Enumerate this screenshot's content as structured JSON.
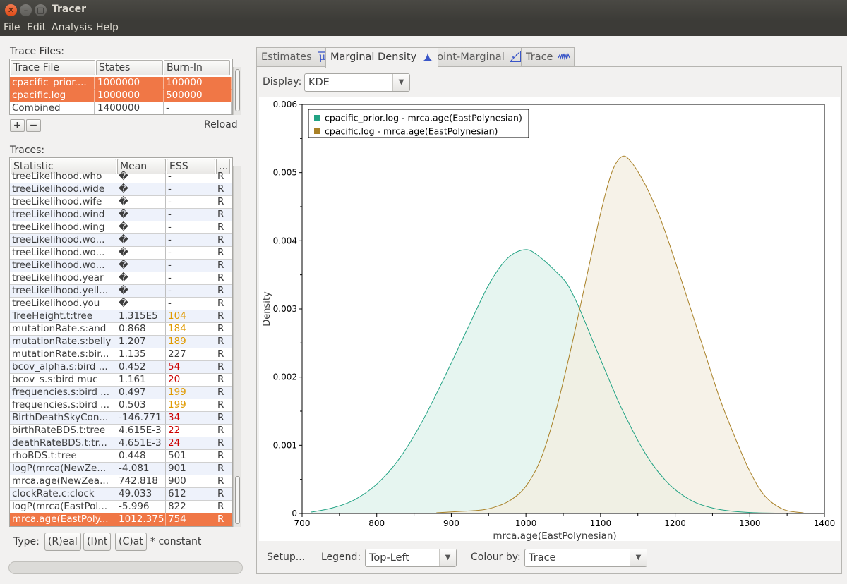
{
  "window": {
    "title": "Tracer"
  },
  "menu": [
    "File",
    "Edit",
    "Analysis",
    "Help"
  ],
  "trace_files": {
    "label": "Trace Files:",
    "columns": [
      "Trace File",
      "States",
      "Burn-In"
    ],
    "rows": [
      {
        "file": "cpacific_prior....",
        "states": "1000000",
        "burnin": "100000",
        "selected": true
      },
      {
        "file": "cpacific.log",
        "states": "1000000",
        "burnin": "500000",
        "selected": true
      },
      {
        "file": "Combined",
        "states": "1400000",
        "burnin": "-",
        "selected": false
      }
    ],
    "add_label": "+",
    "remove_label": "−",
    "reload_label": "Reload"
  },
  "traces": {
    "label": "Traces:",
    "columns": [
      "Statistic",
      "Mean",
      "ESS",
      "..."
    ],
    "rows": [
      {
        "stat": "treeLikelihood.who",
        "mean": "�",
        "ess": "-",
        "type": "R",
        "ess_flag": ""
      },
      {
        "stat": "treeLikelihood.wide",
        "mean": "�",
        "ess": "-",
        "type": "R",
        "ess_flag": ""
      },
      {
        "stat": "treeLikelihood.wife",
        "mean": "�",
        "ess": "-",
        "type": "R",
        "ess_flag": ""
      },
      {
        "stat": "treeLikelihood.wind",
        "mean": "�",
        "ess": "-",
        "type": "R",
        "ess_flag": ""
      },
      {
        "stat": "treeLikelihood.wing",
        "mean": "�",
        "ess": "-",
        "type": "R",
        "ess_flag": ""
      },
      {
        "stat": "treeLikelihood.wo...",
        "mean": "�",
        "ess": "-",
        "type": "R",
        "ess_flag": ""
      },
      {
        "stat": "treeLikelihood.wo...",
        "mean": "�",
        "ess": "-",
        "type": "R",
        "ess_flag": ""
      },
      {
        "stat": "treeLikelihood.wo...",
        "mean": "�",
        "ess": "-",
        "type": "R",
        "ess_flag": ""
      },
      {
        "stat": "treeLikelihood.year",
        "mean": "�",
        "ess": "-",
        "type": "R",
        "ess_flag": ""
      },
      {
        "stat": "treeLikelihood.yell...",
        "mean": "�",
        "ess": "-",
        "type": "R",
        "ess_flag": ""
      },
      {
        "stat": "treeLikelihood.you",
        "mean": "�",
        "ess": "-",
        "type": "R",
        "ess_flag": ""
      },
      {
        "stat": "TreeHeight.t:tree",
        "mean": "1.315E5",
        "ess": "104",
        "type": "R",
        "ess_flag": "warn"
      },
      {
        "stat": "mutationRate.s:and",
        "mean": "0.868",
        "ess": "184",
        "type": "R",
        "ess_flag": "warn"
      },
      {
        "stat": "mutationRate.s:belly",
        "mean": "1.207",
        "ess": "189",
        "type": "R",
        "ess_flag": "warn"
      },
      {
        "stat": "mutationRate.s:bir...",
        "mean": "1.135",
        "ess": "227",
        "type": "R",
        "ess_flag": ""
      },
      {
        "stat": "bcov_alpha.s:bird ...",
        "mean": "0.452",
        "ess": "54",
        "type": "R",
        "ess_flag": "bad"
      },
      {
        "stat": "bcov_s.s:bird muc",
        "mean": "1.161",
        "ess": "20",
        "type": "R",
        "ess_flag": "bad"
      },
      {
        "stat": "frequencies.s:bird ...",
        "mean": "0.497",
        "ess": "199",
        "type": "R",
        "ess_flag": "warn"
      },
      {
        "stat": "frequencies.s:bird ...",
        "mean": "0.503",
        "ess": "199",
        "type": "R",
        "ess_flag": "warn"
      },
      {
        "stat": "BirthDeathSkyCon...",
        "mean": "-146.771",
        "ess": "34",
        "type": "R",
        "ess_flag": "bad"
      },
      {
        "stat": "birthRateBDS.t:tree",
        "mean": "4.615E-3",
        "ess": "22",
        "type": "R",
        "ess_flag": "bad"
      },
      {
        "stat": "deathRateBDS.t:tr...",
        "mean": "4.651E-3",
        "ess": "24",
        "type": "R",
        "ess_flag": "bad"
      },
      {
        "stat": "rhoBDS.t:tree",
        "mean": "0.448",
        "ess": "501",
        "type": "R",
        "ess_flag": ""
      },
      {
        "stat": "logP(mrca(NewZe...",
        "mean": "-4.081",
        "ess": "901",
        "type": "R",
        "ess_flag": ""
      },
      {
        "stat": "mrca.age(NewZea...",
        "mean": "742.818",
        "ess": "900",
        "type": "R",
        "ess_flag": ""
      },
      {
        "stat": "clockRate.c:clock",
        "mean": "49.033",
        "ess": "612",
        "type": "R",
        "ess_flag": ""
      },
      {
        "stat": "logP(mrca(EastPol...",
        "mean": "-5.996",
        "ess": "822",
        "type": "R",
        "ess_flag": ""
      },
      {
        "stat": "mrca.age(EastPoly...",
        "mean": "1012.375",
        "ess": "754",
        "type": "R",
        "ess_flag": "",
        "selected": true
      }
    ],
    "colors": {
      "warn": "#e09a00",
      "bad": "#cc0000",
      "selection": "#f07746"
    }
  },
  "type_bar": {
    "label": "Type:",
    "real": "(R)eal",
    "int": "(I)nt",
    "cat": "(C)at",
    "note": "* constant"
  },
  "tabs": [
    {
      "label": "Estimates",
      "icon": "mu-icon"
    },
    {
      "label": "Marginal Density",
      "icon": "density-icon",
      "active": true
    },
    {
      "label": "Joint-Marginal",
      "icon": "scatter-icon"
    },
    {
      "label": "Trace",
      "icon": "trace-icon"
    }
  ],
  "display": {
    "label": "Display:",
    "value": "KDE"
  },
  "bottom_bar": {
    "setup_label": "Setup...",
    "legend_label": "Legend:",
    "legend_value": "Top-Left",
    "colour_label": "Colour by:",
    "colour_value": "Trace"
  },
  "chart_data": {
    "type": "area",
    "xlabel": "mrca.age(EastPolynesian)",
    "ylabel": "Density",
    "xlim": [
      700,
      1400
    ],
    "ylim": [
      0,
      0.006
    ],
    "x_ticks": [
      "700",
      "800",
      "900",
      "1000",
      "1100",
      "1200",
      "1300",
      "1400"
    ],
    "y_ticks": [
      "0",
      "0.001",
      "0.002",
      "0.003",
      "0.004",
      "0.005",
      "0.006"
    ],
    "legend_position": "top-left",
    "series": [
      {
        "name": "cpacific_prior.log - mrca.age(EastPolynesian)",
        "color": "#22a384",
        "fill": "#e6f5f0",
        "x": [
          712,
          740,
          770,
          800,
          830,
          860,
          890,
          920,
          950,
          975,
          1000,
          1020,
          1040,
          1055,
          1070,
          1090,
          1110,
          1130,
          1160,
          1190,
          1220,
          1250,
          1280,
          1310,
          1340
        ],
        "y": [
          2e-05,
          8e-05,
          0.0002,
          0.00043,
          0.0008,
          0.00133,
          0.00198,
          0.00267,
          0.00335,
          0.00374,
          0.00387,
          0.00375,
          0.00355,
          0.00337,
          0.00305,
          0.00252,
          0.002,
          0.0015,
          0.00088,
          0.00045,
          0.0002,
          8e-05,
          3e-05,
          1e-05,
          5e-06
        ]
      },
      {
        "name": "cpacific.log - mrca.age(EastPolynesian)",
        "color": "#a98127",
        "fill": "#f3ede0",
        "x": [
          880,
          910,
          940,
          960,
          980,
          1000,
          1020,
          1040,
          1060,
          1080,
          1100,
          1115,
          1128,
          1140,
          1160,
          1180,
          1200,
          1220,
          1240,
          1260,
          1280,
          1300,
          1320,
          1345,
          1372
        ],
        "y": [
          1e-05,
          3e-05,
          5e-05,
          0.0001,
          0.0002,
          0.0004,
          0.0008,
          0.0015,
          0.0024,
          0.0034,
          0.0044,
          0.005,
          0.00523,
          0.00517,
          0.00482,
          0.00433,
          0.0037,
          0.00303,
          0.00235,
          0.00168,
          0.00112,
          0.00062,
          0.00026,
          6e-05,
          1e-05
        ]
      }
    ]
  }
}
